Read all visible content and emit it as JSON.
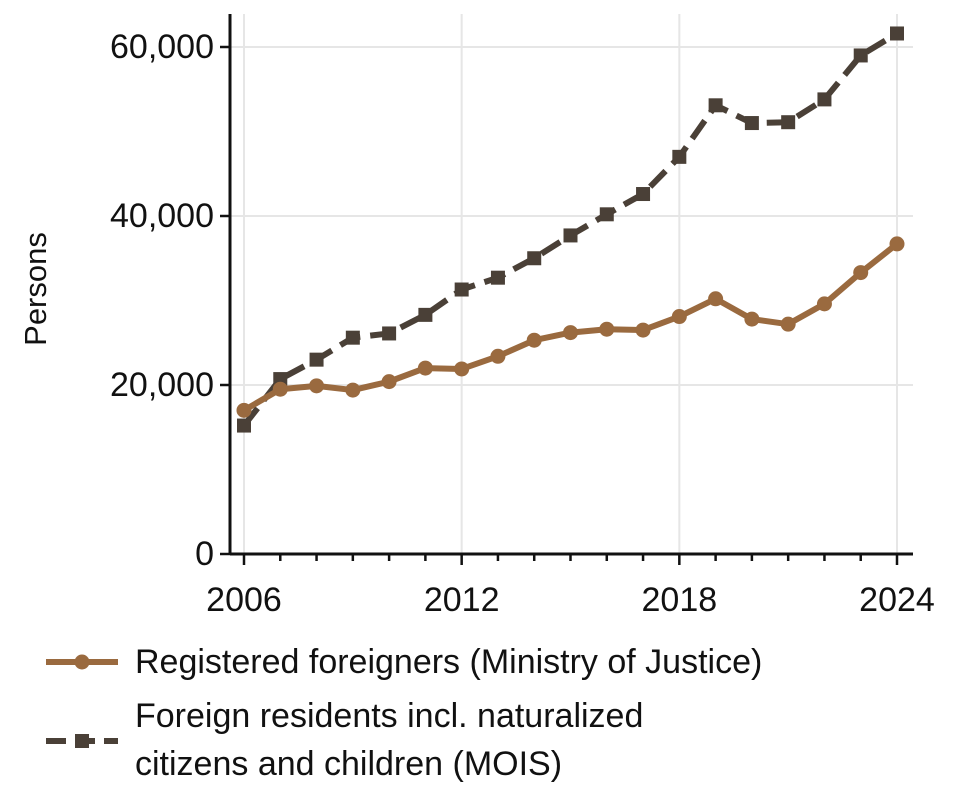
{
  "chart_data": {
    "type": "line",
    "title": "",
    "xlabel": "",
    "ylabel": "Persons",
    "xlim": [
      2005.6,
      2024.6
    ],
    "ylim": [
      0,
      64000
    ],
    "grid": true,
    "legend_position": "bottom",
    "x_ticks": [
      2006,
      2012,
      2018,
      2024
    ],
    "x_tick_labels": [
      "2006",
      "2012",
      "2018",
      "2024"
    ],
    "y_ticks": [
      0,
      20000,
      40000,
      60000
    ],
    "y_tick_labels": [
      "0",
      "20,000",
      "40,000",
      "60,000"
    ],
    "x": [
      2006,
      2007,
      2008,
      2009,
      2010,
      2011,
      2012,
      2013,
      2014,
      2015,
      2016,
      2017,
      2018,
      2019,
      2020,
      2021,
      2022,
      2023,
      2024
    ],
    "series": [
      {
        "name": "Registered foreigners (Ministry of Justice)",
        "color": "#9a6a3f",
        "line_style": "solid",
        "marker": "circle",
        "values": [
          17000,
          19500,
          19900,
          19400,
          20400,
          22000,
          21900,
          23400,
          25300,
          26200,
          26600,
          26500,
          28100,
          30200,
          27800,
          27200,
          29600,
          33300,
          36700
        ]
      },
      {
        "name_lines": [
          "Foreign residents incl. naturalized",
          "citizens and children (MOIS)"
        ],
        "color": "#4a4037",
        "line_style": "dashed",
        "marker": "square",
        "values": [
          15200,
          20700,
          23000,
          25600,
          26100,
          28300,
          31300,
          32700,
          35000,
          37700,
          40200,
          42600,
          47000,
          53100,
          51000,
          51100,
          53800,
          59000,
          61600
        ]
      }
    ]
  }
}
